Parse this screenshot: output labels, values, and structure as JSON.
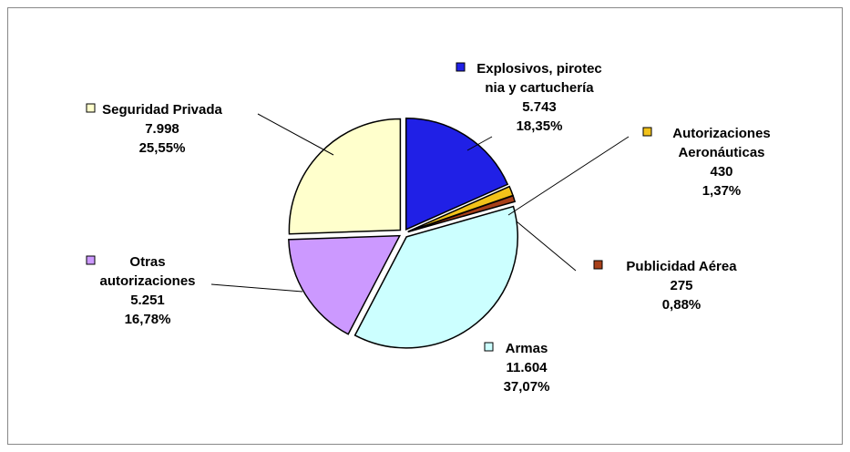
{
  "chart_data": {
    "type": "pie",
    "categories": [
      [
        "Explosivos, pirotec",
        "nia y cartuchería"
      ],
      [
        "Autorizaciones",
        "Aeronáuticas"
      ],
      [
        "Publicidad Aérea"
      ],
      [
        "Armas"
      ],
      [
        "Otras",
        "autorizaciones"
      ],
      [
        "Seguridad Privada"
      ]
    ],
    "values": [
      5743,
      430,
      275,
      11604,
      5251,
      7998
    ],
    "value_labels": [
      "5.743",
      "430",
      "275",
      "11.604",
      "5.251",
      "7.998"
    ],
    "percentages": [
      18.35,
      1.37,
      0.88,
      37.07,
      16.78,
      25.55
    ],
    "percentage_labels": [
      "18,35%",
      "1,37%",
      "0,88%",
      "37,07%",
      "16,78%",
      "25,55%"
    ],
    "colors": [
      "#2020e6",
      "#f2c21a",
      "#a8401a",
      "#ccffff",
      "#cc99ff",
      "#ffffcc"
    ]
  }
}
